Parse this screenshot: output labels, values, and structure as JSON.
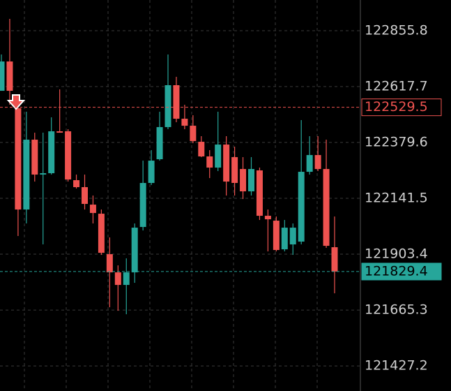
{
  "chart_data": {
    "type": "candlestick",
    "open": [
      122599.8,
      122724.8,
      122525.4,
      122093.9,
      122391.5,
      122242.7,
      122248.6,
      122427.2,
      122427.2,
      122218.9,
      122189.2,
      122114.7,
      122076.0,
      121903.4,
      121826.0,
      121772.4,
      121826.0,
      122019.5,
      122207.0,
      122308.2,
      122445.1,
      122623.7,
      122480.8,
      122451.0,
      122382.6,
      122320.1,
      122272.5,
      122370.7,
      122317.1,
      122266.5,
      122171.3,
      122260.6,
      122067.1,
      122046.3,
      121924.2,
      121945.1,
      121957.0,
      122254.6,
      122326.0,
      122266.5,
      121933.2
    ],
    "high": [
      122754.6,
      122906.4,
      122555.2,
      122510.6,
      122421.3,
      122421.3,
      122486.7,
      122605.8,
      122436.1,
      122242.7,
      122242.7,
      122153.4,
      122093.9,
      121974.8,
      121855.8,
      121885.6,
      122034.4,
      122302.2,
      122346.9,
      122510.6,
      122754.6,
      122659.4,
      122540.3,
      122495.7,
      122406.4,
      122346.9,
      122510.6,
      122406.4,
      122361.7,
      122317.1,
      122317.1,
      122272.5,
      122093.9,
      122064.1,
      122049.3,
      122034.4,
      122474.8,
      122406.4,
      122406.4,
      122391.5,
      122064.1
    ],
    "low": [
      122599.8,
      122540.3,
      121980.8,
      122034.4,
      122212.9,
      121945.1,
      122242.7,
      122421.3,
      122212.9,
      122183.2,
      122093.9,
      122034.4,
      121900.4,
      121677.2,
      121662.3,
      121647.4,
      121781.4,
      122004.6,
      122198.1,
      122302.2,
      122436.1,
      122465.9,
      122436.1,
      122376.6,
      122317.1,
      122227.8,
      122257.6,
      122153.4,
      122153.4,
      122138.5,
      122153.4,
      122049.3,
      121915.3,
      121915.3,
      121915.3,
      121900.4,
      121945.1,
      122242.7,
      122257.6,
      121930.2,
      121736.7
    ],
    "close": [
      122724.8,
      122599.8,
      122093.9,
      122391.5,
      122242.7,
      122248.6,
      122427.2,
      122421.3,
      122221.9,
      122189.2,
      122117.7,
      122079.0,
      121909.3,
      121826.0,
      121772.4,
      121826.0,
      122016.5,
      122207.0,
      122302.2,
      122445.1,
      122623.7,
      122480.8,
      122451.0,
      122385.5,
      122320.1,
      122272.5,
      122370.7,
      122212.9,
      122207.0,
      122171.3,
      122266.5,
      122067.1,
      122052.2,
      121921.3,
      122016.5,
      122016.5,
      122254.6,
      122326.0,
      122266.5,
      121939.1,
      121829.4
    ],
    "up_color": "#26a69a",
    "down_color": "#ef5350",
    "ylim": [
      121320.3,
      122986.8
    ],
    "yticks": [
      122855.8,
      122617.7,
      122379.6,
      122141.5,
      121903.4,
      121665.3,
      121427.2
    ],
    "grid": true,
    "price_lines": [
      {
        "value": 122529.5,
        "color": "#ef5350",
        "style": "outline"
      },
      {
        "value": 121829.4,
        "color": "#26a69a",
        "style": "filled"
      }
    ]
  }
}
